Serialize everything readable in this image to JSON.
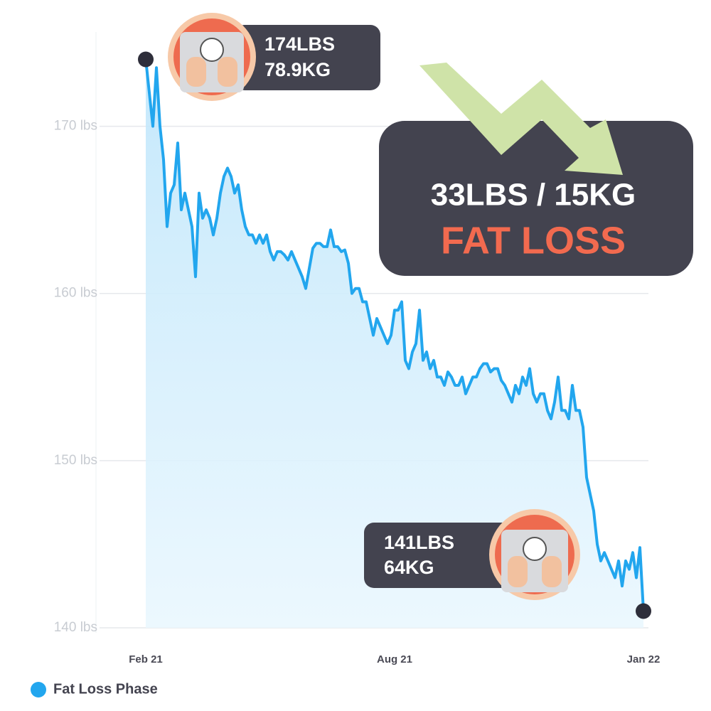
{
  "chart_data": {
    "type": "line",
    "categories": [
      "Feb 21",
      null,
      null,
      null,
      null,
      null,
      null,
      null,
      null,
      null,
      null,
      null,
      null,
      null,
      null,
      null,
      null,
      null,
      null,
      null,
      null,
      null,
      null,
      null,
      null,
      null,
      null,
      null,
      null,
      null,
      null,
      null,
      null,
      null,
      null,
      null,
      null,
      null,
      null,
      null,
      null,
      null,
      null,
      null,
      null,
      null,
      null,
      null,
      null,
      null,
      null,
      null,
      null,
      null,
      null,
      null,
      null,
      null,
      null,
      null,
      null,
      null,
      null,
      null,
      null,
      null,
      null,
      null,
      null,
      null,
      "Aug 21",
      null,
      null,
      null,
      null,
      null,
      null,
      null,
      null,
      null,
      null,
      null,
      null,
      null,
      null,
      null,
      null,
      null,
      null,
      null,
      null,
      null,
      null,
      null,
      null,
      null,
      null,
      null,
      null,
      null,
      null,
      null,
      null,
      null,
      null,
      null,
      null,
      null,
      null,
      null,
      null,
      null,
      null,
      null,
      null,
      null,
      null,
      null,
      null,
      null,
      null,
      null,
      null,
      null,
      null,
      null,
      null,
      null,
      null,
      null,
      null,
      null,
      null,
      null,
      null,
      null,
      null,
      null,
      null,
      null,
      "Jan 22"
    ],
    "series": [
      {
        "name": "Fat Loss Phase",
        "color": "#22a6ee",
        "values": [
          174,
          172,
          170,
          173.5,
          170,
          168,
          164,
          166,
          166.5,
          169,
          165,
          166,
          165,
          164,
          161,
          166,
          164.5,
          165,
          164.5,
          163.5,
          164.5,
          166,
          167,
          167.5,
          167,
          166,
          166.5,
          165,
          164,
          163.5,
          163.5,
          163,
          163.5,
          163,
          163.5,
          162.5,
          162,
          162.5,
          162.5,
          162.3,
          162,
          162.5,
          162,
          161.5,
          161,
          160.3,
          161.5,
          162.7,
          163,
          163,
          162.8,
          162.8,
          163.8,
          162.8,
          162.8,
          162.5,
          162.6,
          161.8,
          160,
          160.3,
          160.3,
          159.5,
          159.5,
          158.5,
          157.5,
          158.5,
          158,
          157.5,
          157,
          157.5,
          159,
          159,
          159.5,
          156,
          155.5,
          156.5,
          157,
          159,
          156,
          156.5,
          155.5,
          156,
          155,
          155,
          154.5,
          155.3,
          155,
          154.5,
          154.5,
          155,
          154,
          154.5,
          155,
          155,
          155.5,
          155.8,
          155.8,
          155.3,
          155.5,
          155.5,
          154.8,
          154.5,
          154,
          153.5,
          154.5,
          154,
          155,
          154.5,
          155.5,
          154,
          153.5,
          154,
          154,
          153,
          152.5,
          153.5,
          155,
          153,
          153,
          152.5,
          154.5,
          153,
          153,
          152,
          149,
          148,
          147,
          145,
          144,
          144.5,
          144,
          143.5,
          143,
          144,
          142.5,
          144,
          143.5,
          144.5,
          143,
          144.8,
          141
        ]
      }
    ],
    "ylim": [
      140,
      175
    ],
    "yticks": [
      {
        "value": 140,
        "label": "140 lbs"
      },
      {
        "value": 150,
        "label": "150 lbs"
      },
      {
        "value": 160,
        "label": "160 lbs"
      },
      {
        "value": 170,
        "label": "170 lbs"
      }
    ],
    "grid": true,
    "legend": "bottom-left",
    "annotations": [
      "174LBS",
      "78.9KG",
      "141LBS",
      "64KG",
      "33LBS / 15KG",
      "FAT LOSS"
    ]
  }
}
